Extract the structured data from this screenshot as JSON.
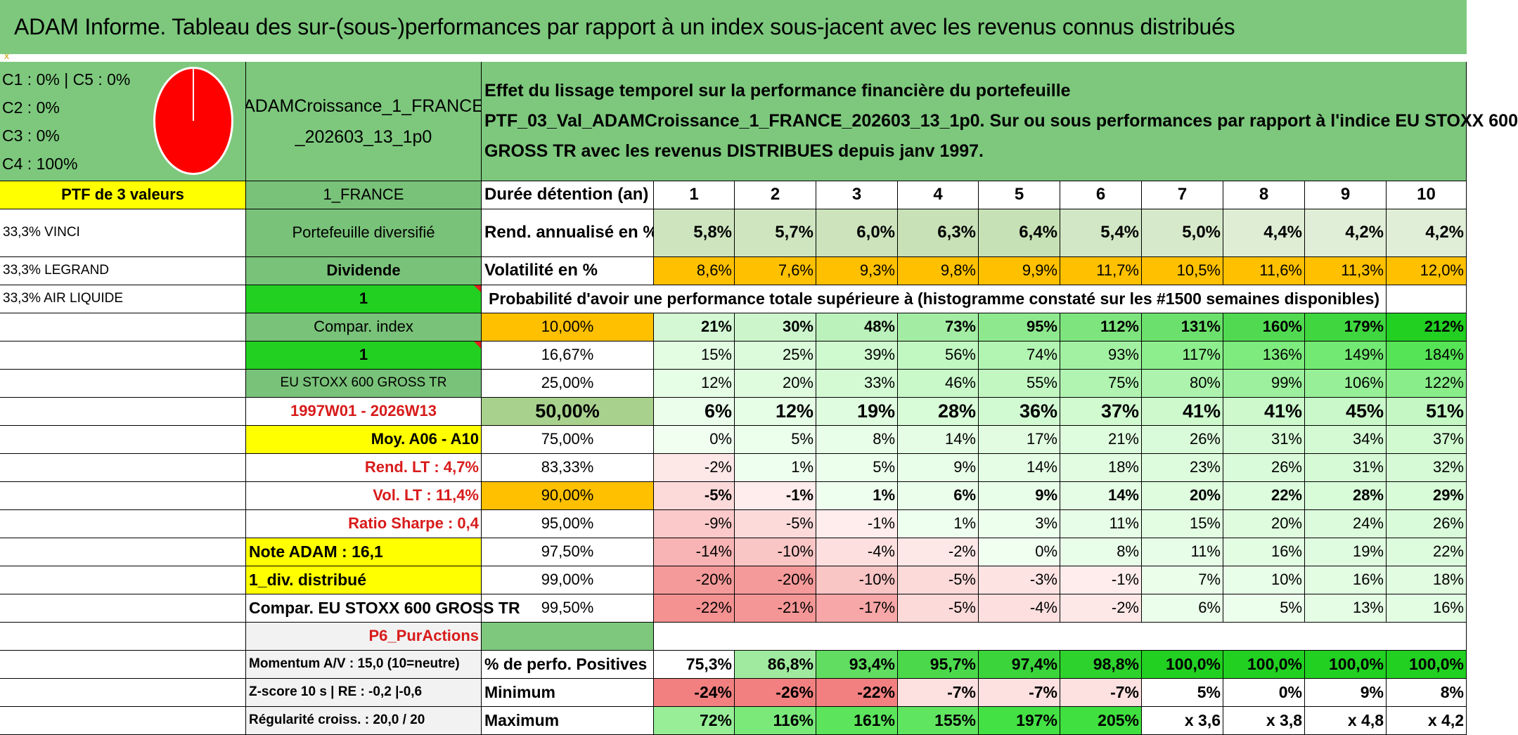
{
  "title": "ADAM Informe. Tableau des sur-(sous-)performances par rapport à un index sous-jacent avec les revenus connus distribués",
  "colors": {
    "header_green": "#7dc87d",
    "bright_green": "#22d022",
    "yellow": "#ffff00",
    "orange": "#ffc000",
    "pie_red": "#ff0000",
    "label_red": "#d81b1b"
  },
  "classes": {
    "line1": "C1 : 0% | C5 : 0%",
    "line2": "C2 : 0%",
    "line3": "C3 : 0%",
    "line4": "C4 : 100%",
    "pie_share_c4": 1.0
  },
  "portfolio_name": "ADAMCroissance_1_FRANCE _202603_13_1p0",
  "effect_text": {
    "line1": "Effet du lissage temporel sur la performance financière du portefeuille",
    "line2": "PTF_03_Val_ADAMCroissance_1_FRANCE_202603_13_1p0. Sur ou sous performances par rapport à l'indice EU STOXX 600",
    "line3": "GROSS TR avec les revenus DISTRIBUES depuis janv 1997."
  },
  "ptf_label": "PTF de 3 valeurs",
  "country": "1_FRANCE",
  "holdings": [
    "33,3% VINCI",
    "33,3% LEGRAND",
    "33,3% AIR LIQUIDE"
  ],
  "labels": {
    "portefeuille": "Portefeuille diversifié",
    "dividende": "Dividende",
    "one_a": "1",
    "compar_index": "Compar. index",
    "one_b": "1",
    "index_name": "EU STOXX 600 GROSS TR",
    "period": "1997W01 - 2026W13",
    "moy": "Moy. A06 - A10",
    "rend_lt": "Rend. LT : 4,7%",
    "vol_lt": "Vol. LT : 11,4%",
    "sharpe": "Ratio Sharpe : 0,4",
    "note": "Note ADAM : 16,1",
    "div": "1_div. distribué",
    "compar_eu": "Compar. EU STOXX 600 GROSS TR",
    "p6": "P6_PurActions",
    "momentum": "Momentum A/V : 15,0 (10=neutre)",
    "zscore": "Z-score 10 s | RE : -0,2 |-0,6",
    "regularite": "Régularité croiss. : 20,0 / 20"
  },
  "table": {
    "duree_label": "Durée détention (an)",
    "years": [
      "1",
      "2",
      "3",
      "4",
      "5",
      "6",
      "7",
      "8",
      "9",
      "10"
    ],
    "rend_label": "Rend. annualisé en %",
    "rend": [
      "5,8%",
      "5,7%",
      "6,0%",
      "6,3%",
      "6,4%",
      "5,4%",
      "5,0%",
      "4,4%",
      "4,2%",
      "4,2%"
    ],
    "vol_label": "Volatilité en %",
    "vol": [
      "8,6%",
      "7,6%",
      "9,3%",
      "9,8%",
      "9,9%",
      "11,7%",
      "10,5%",
      "11,6%",
      "11,3%",
      "12,0%"
    ],
    "prob_header": "Probabilité d'avoir une performance totale supérieure à (histogramme constaté sur les #1500 semaines disponibles)",
    "prob_rows": [
      {
        "pct": "10,00%",
        "values": [
          "21%",
          "30%",
          "48%",
          "73%",
          "95%",
          "112%",
          "131%",
          "160%",
          "179%",
          "212%"
        ]
      },
      {
        "pct": "16,67%",
        "values": [
          "15%",
          "25%",
          "39%",
          "56%",
          "74%",
          "93%",
          "117%",
          "136%",
          "149%",
          "184%"
        ]
      },
      {
        "pct": "25,00%",
        "values": [
          "12%",
          "20%",
          "33%",
          "46%",
          "55%",
          "75%",
          "80%",
          "99%",
          "106%",
          "122%"
        ]
      },
      {
        "pct": "50,00%",
        "values": [
          "6%",
          "12%",
          "19%",
          "28%",
          "36%",
          "37%",
          "41%",
          "41%",
          "45%",
          "51%"
        ]
      },
      {
        "pct": "75,00%",
        "values": [
          "0%",
          "5%",
          "8%",
          "14%",
          "17%",
          "21%",
          "26%",
          "31%",
          "34%",
          "37%"
        ]
      },
      {
        "pct": "83,33%",
        "values": [
          "-2%",
          "1%",
          "5%",
          "9%",
          "14%",
          "18%",
          "23%",
          "26%",
          "31%",
          "32%"
        ]
      },
      {
        "pct": "90,00%",
        "values": [
          "-5%",
          "-1%",
          "1%",
          "6%",
          "9%",
          "14%",
          "20%",
          "22%",
          "28%",
          "29%"
        ]
      },
      {
        "pct": "95,00%",
        "values": [
          "-9%",
          "-5%",
          "-1%",
          "1%",
          "3%",
          "11%",
          "15%",
          "20%",
          "24%",
          "26%"
        ]
      },
      {
        "pct": "97,50%",
        "values": [
          "-14%",
          "-10%",
          "-4%",
          "-2%",
          "0%",
          "8%",
          "11%",
          "16%",
          "19%",
          "22%"
        ]
      },
      {
        "pct": "99,00%",
        "values": [
          "-20%",
          "-20%",
          "-10%",
          "-5%",
          "-3%",
          "-1%",
          "7%",
          "10%",
          "16%",
          "18%"
        ]
      },
      {
        "pct": "99,50%",
        "values": [
          "-22%",
          "-21%",
          "-17%",
          "-5%",
          "-4%",
          "-2%",
          "6%",
          "5%",
          "13%",
          "16%"
        ]
      }
    ],
    "pos_label": "% de perfo. Positives",
    "pos": [
      "75,3%",
      "86,8%",
      "93,4%",
      "95,7%",
      "97,4%",
      "98,8%",
      "100,0%",
      "100,0%",
      "100,0%",
      "100,0%"
    ],
    "min_label": "Minimum",
    "min": [
      "-24%",
      "-26%",
      "-22%",
      "-7%",
      "-7%",
      "-7%",
      "5%",
      "0%",
      "9%",
      "8%"
    ],
    "max_label": "Maximum",
    "max": [
      "72%",
      "116%",
      "161%",
      "155%",
      "197%",
      "205%",
      "x 3,6",
      "x 3,8",
      "x 4,8",
      "x 4,2"
    ]
  }
}
